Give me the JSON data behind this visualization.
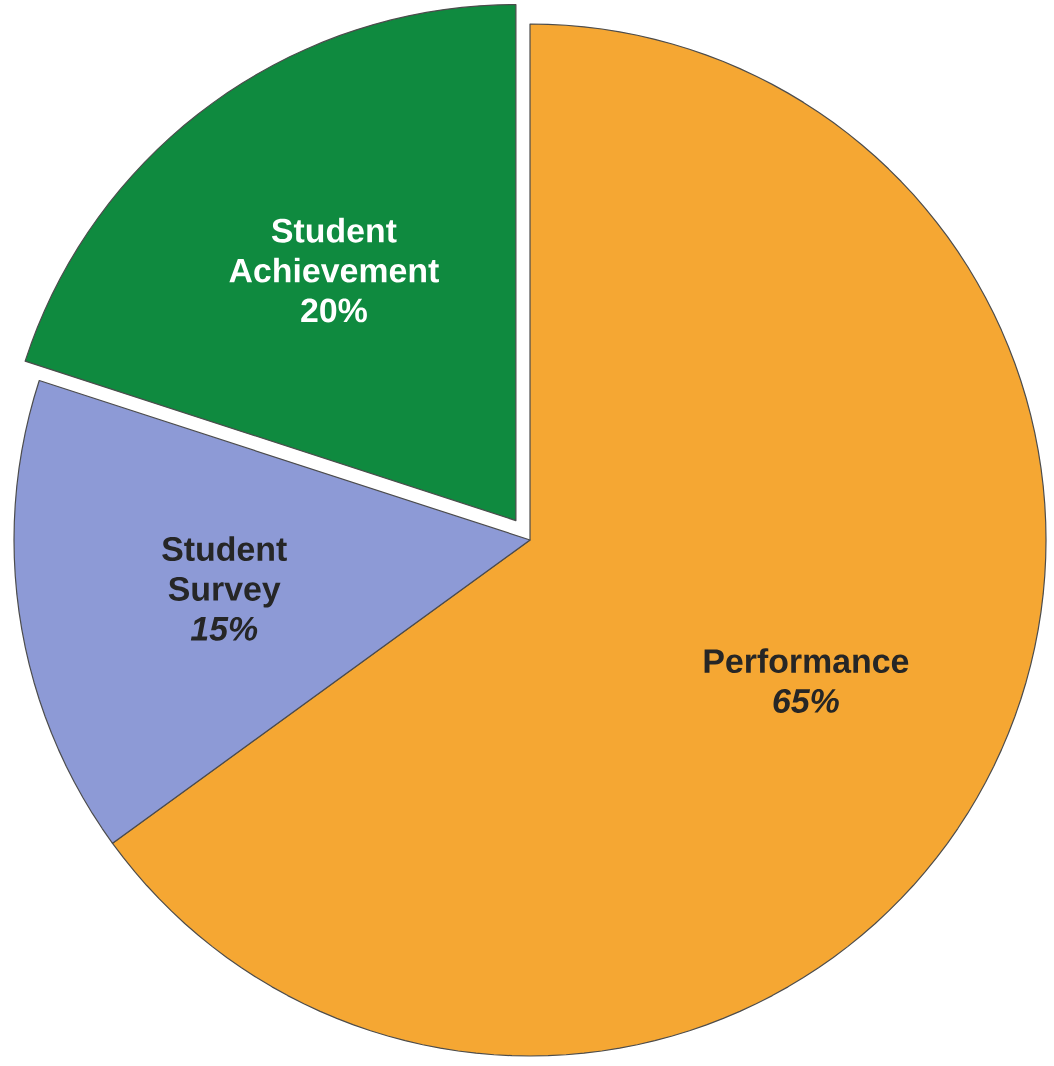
{
  "chart_data": {
    "type": "pie",
    "categories": [
      "Performance",
      "Student Survey",
      "Student Achievement"
    ],
    "values": [
      65,
      15,
      20
    ],
    "value_labels": [
      "65%",
      "15%",
      "20%"
    ],
    "colors": [
      "#f5a733",
      "#8d9ad6",
      "#0f8a3f"
    ]
  }
}
